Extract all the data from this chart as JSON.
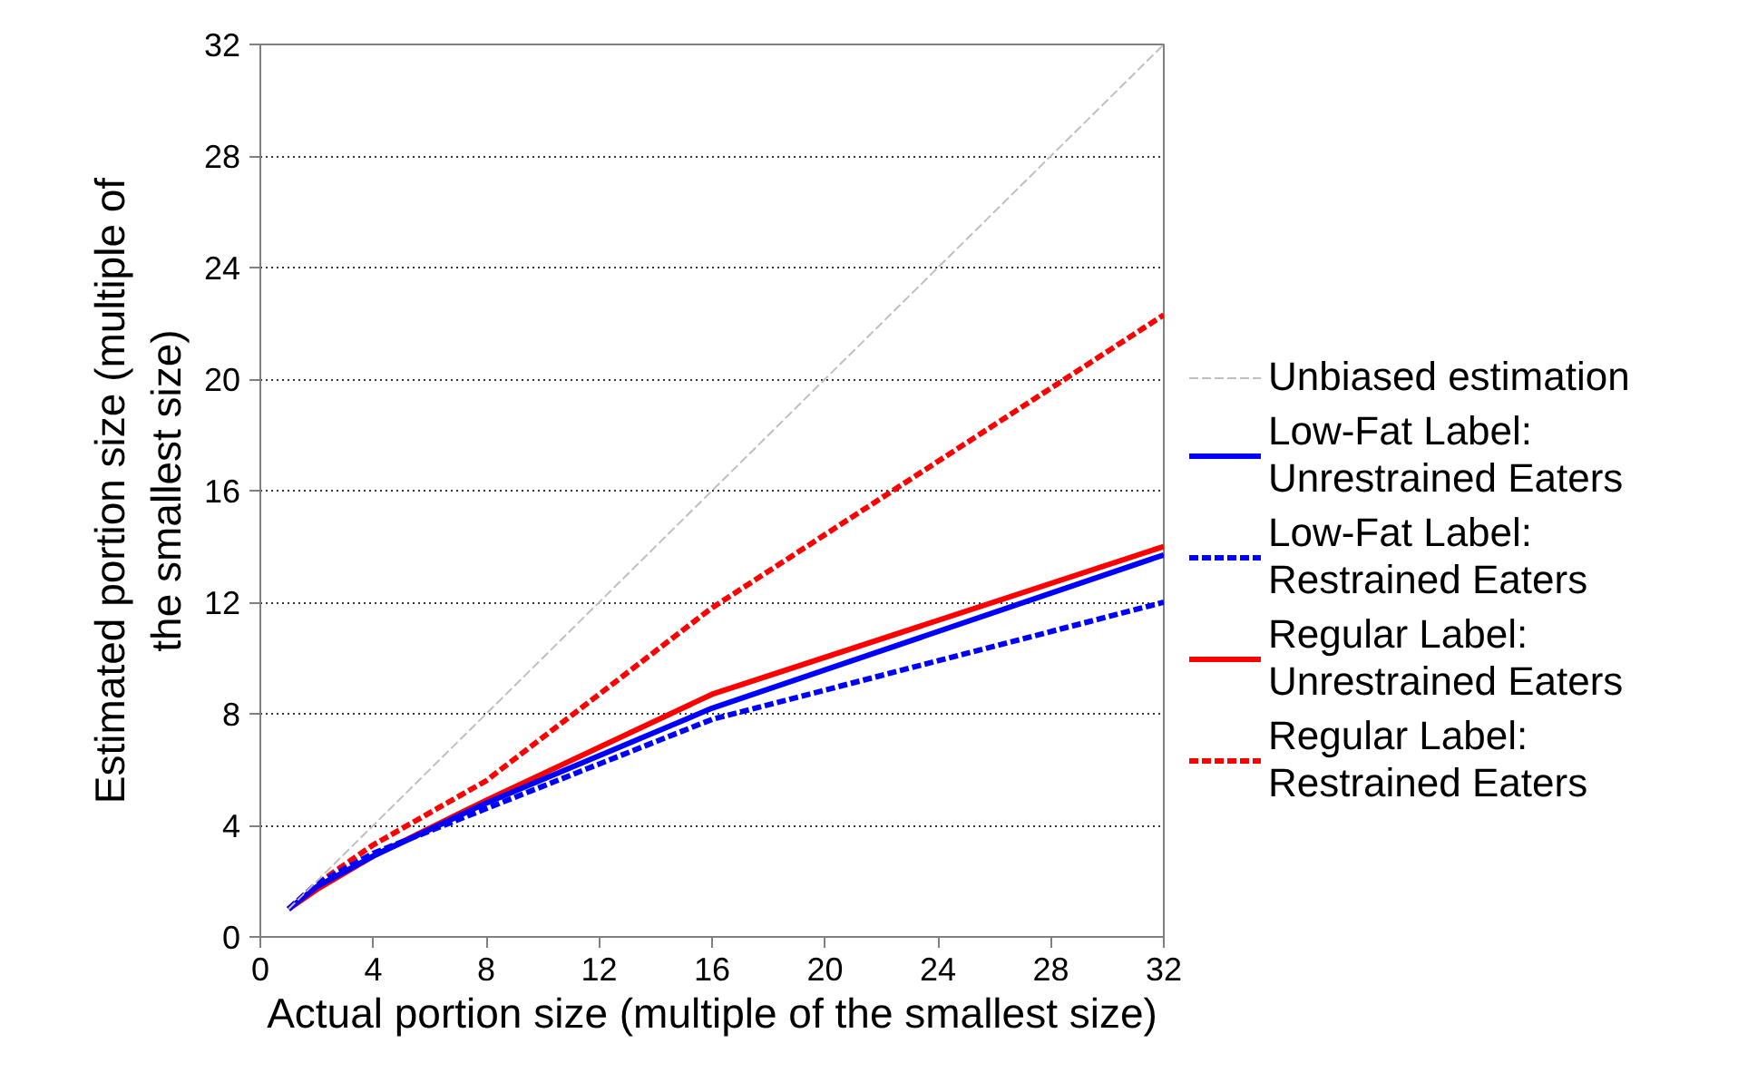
{
  "chart_data": {
    "type": "line",
    "xlabel": "Actual portion size (multiple of the smallest size)",
    "ylabel": "Estimated portion size (multiple of the smallest size)",
    "xlim": [
      0,
      32
    ],
    "ylim": [
      0,
      32
    ],
    "xticks": [
      0,
      4,
      8,
      12,
      16,
      20,
      24,
      28,
      32
    ],
    "yticks": [
      0,
      4,
      8,
      12,
      16,
      20,
      24,
      28,
      32
    ],
    "grid": "y",
    "legend": "right",
    "marker": "none",
    "series": [
      {
        "name": "Unbiased estimation",
        "color": "#bfbfbf",
        "line_style": "dashed",
        "x": [
          1,
          32
        ],
        "values": [
          1,
          32
        ]
      },
      {
        "name": "Low-Fat Label: Unrestrained Eaters",
        "color": "#0000ff",
        "line_style": "solid",
        "x": [
          1,
          2,
          4,
          8,
          16,
          32
        ],
        "values": [
          1,
          1.8,
          2.9,
          4.8,
          8.2,
          13.7
        ]
      },
      {
        "name": "Low-Fat Label: Restrained Eaters",
        "color": "#0000ff",
        "line_style": "dashed",
        "x": [
          1,
          2,
          4,
          8,
          16,
          32
        ],
        "values": [
          1,
          1.9,
          3.0,
          4.6,
          7.8,
          12.0
        ]
      },
      {
        "name": "Regular Label: Unrestrained Eaters",
        "color": "#ff0000",
        "line_style": "solid",
        "x": [
          1,
          2,
          4,
          8,
          16,
          32
        ],
        "values": [
          1,
          1.7,
          2.9,
          4.9,
          8.7,
          14.0
        ]
      },
      {
        "name": "Regular Label: Restrained Eaters",
        "color": "#ff0000",
        "line_style": "dashed",
        "x": [
          1,
          2,
          4,
          8,
          16,
          32
        ],
        "values": [
          1,
          1.9,
          3.3,
          5.6,
          11.8,
          22.3
        ]
      }
    ]
  }
}
